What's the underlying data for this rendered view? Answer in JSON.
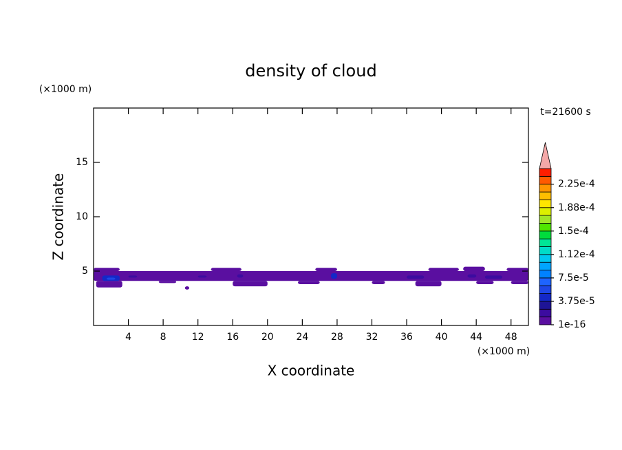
{
  "chart_data": {
    "type": "contour",
    "title": "density of cloud",
    "x_label": "X coordinate",
    "y_label": "Z coordinate",
    "x_unit": "(×1000 m)",
    "y_unit": "(×1000 m)",
    "annotation": "t=21600 s",
    "xlim": [
      0,
      50
    ],
    "ylim": [
      0,
      20
    ],
    "xticks": [
      4,
      8,
      12,
      16,
      20,
      24,
      28,
      32,
      36,
      40,
      44,
      48
    ],
    "yticks": [
      5,
      10,
      15
    ],
    "colorbar": {
      "lim": [
        0,
        0.00025
      ],
      "ticks": [
        {
          "value": 1e-16,
          "label": "1e-16"
        },
        {
          "value": 3.75e-05,
          "label": "3.75e-5"
        },
        {
          "value": 7.5e-05,
          "label": "7.5e-5"
        },
        {
          "value": 0.0001125,
          "label": "1.12e-4"
        },
        {
          "value": 0.00015,
          "label": "1.5e-4"
        },
        {
          "value": 0.0001875,
          "label": "1.88e-4"
        },
        {
          "value": 0.000225,
          "label": "2.25e-4"
        }
      ],
      "colors": [
        "#5a0fa0",
        "#3c0ca0",
        "#1e1496",
        "#1428c8",
        "#1e46e6",
        "#1e64ff",
        "#0082ff",
        "#00a5ff",
        "#00c8f0",
        "#00dcc8",
        "#00e696",
        "#00dc3c",
        "#50e600",
        "#a0e628",
        "#dcf000",
        "#ffe600",
        "#ffbe00",
        "#ff9600",
        "#ff5a00",
        "#ff1e00"
      ],
      "extend_color": "#f4a8a8"
    },
    "cells": [
      {
        "x": [
          0,
          50
        ],
        "z": [
          4.1,
          5.0
        ],
        "value": 1e-16
      },
      {
        "x": [
          0,
          3
        ],
        "z": [
          5.0,
          5.3
        ],
        "value": 1e-16
      },
      {
        "x": [
          13.5,
          17
        ],
        "z": [
          5.0,
          5.3
        ],
        "value": 1e-16
      },
      {
        "x": [
          25.5,
          28
        ],
        "z": [
          5.0,
          5.3
        ],
        "value": 1e-16
      },
      {
        "x": [
          38.5,
          42
        ],
        "z": [
          5.0,
          5.3
        ],
        "value": 1e-16
      },
      {
        "x": [
          42.5,
          45
        ],
        "z": [
          5.0,
          5.4
        ],
        "value": 1e-16
      },
      {
        "x": [
          47.5,
          50
        ],
        "z": [
          5.0,
          5.3
        ],
        "value": 1e-16
      },
      {
        "x": [
          0.3,
          3.3
        ],
        "z": [
          3.5,
          4.1
        ],
        "value": 1e-16
      },
      {
        "x": [
          7.5,
          9.5
        ],
        "z": [
          3.9,
          4.1
        ],
        "value": 1e-16
      },
      {
        "x": [
          16,
          20
        ],
        "z": [
          3.6,
          4.1
        ],
        "value": 1e-16
      },
      {
        "x": [
          23.5,
          26
        ],
        "z": [
          3.8,
          4.1
        ],
        "value": 1e-16
      },
      {
        "x": [
          32,
          33.5
        ],
        "z": [
          3.8,
          4.1
        ],
        "value": 1e-16
      },
      {
        "x": [
          37,
          40
        ],
        "z": [
          3.6,
          4.1
        ],
        "value": 1e-16
      },
      {
        "x": [
          44,
          46
        ],
        "z": [
          3.8,
          4.1
        ],
        "value": 1e-16
      },
      {
        "x": [
          48,
          50
        ],
        "z": [
          3.8,
          4.1
        ],
        "value": 1e-16
      },
      {
        "x": [
          10.5,
          11
        ],
        "z": [
          3.3,
          3.6
        ],
        "value": 1e-16
      },
      {
        "x": [
          1,
          3
        ],
        "z": [
          4.1,
          4.6
        ],
        "value": 4e-05
      },
      {
        "x": [
          1.5,
          2.5
        ],
        "z": [
          4.2,
          4.4
        ],
        "value": 5.5e-05
      },
      {
        "x": [
          27.3,
          28
        ],
        "z": [
          4.3,
          4.8
        ],
        "value": 4e-05
      },
      {
        "x": [
          16.5,
          17.2
        ],
        "z": [
          4.4,
          4.7
        ],
        "value": 2e-05
      },
      {
        "x": [
          36,
          38
        ],
        "z": [
          4.3,
          4.6
        ],
        "value": 2e-05
      },
      {
        "x": [
          43,
          44
        ],
        "z": [
          4.4,
          4.7
        ],
        "value": 2e-05
      },
      {
        "x": [
          45,
          47
        ],
        "z": [
          4.3,
          4.6
        ],
        "value": 1.5e-05
      },
      {
        "x": [
          4,
          5
        ],
        "z": [
          4.4,
          4.6
        ],
        "value": 1.5e-05
      },
      {
        "x": [
          12,
          13
        ],
        "z": [
          4.4,
          4.6
        ],
        "value": 1.5e-05
      }
    ]
  }
}
